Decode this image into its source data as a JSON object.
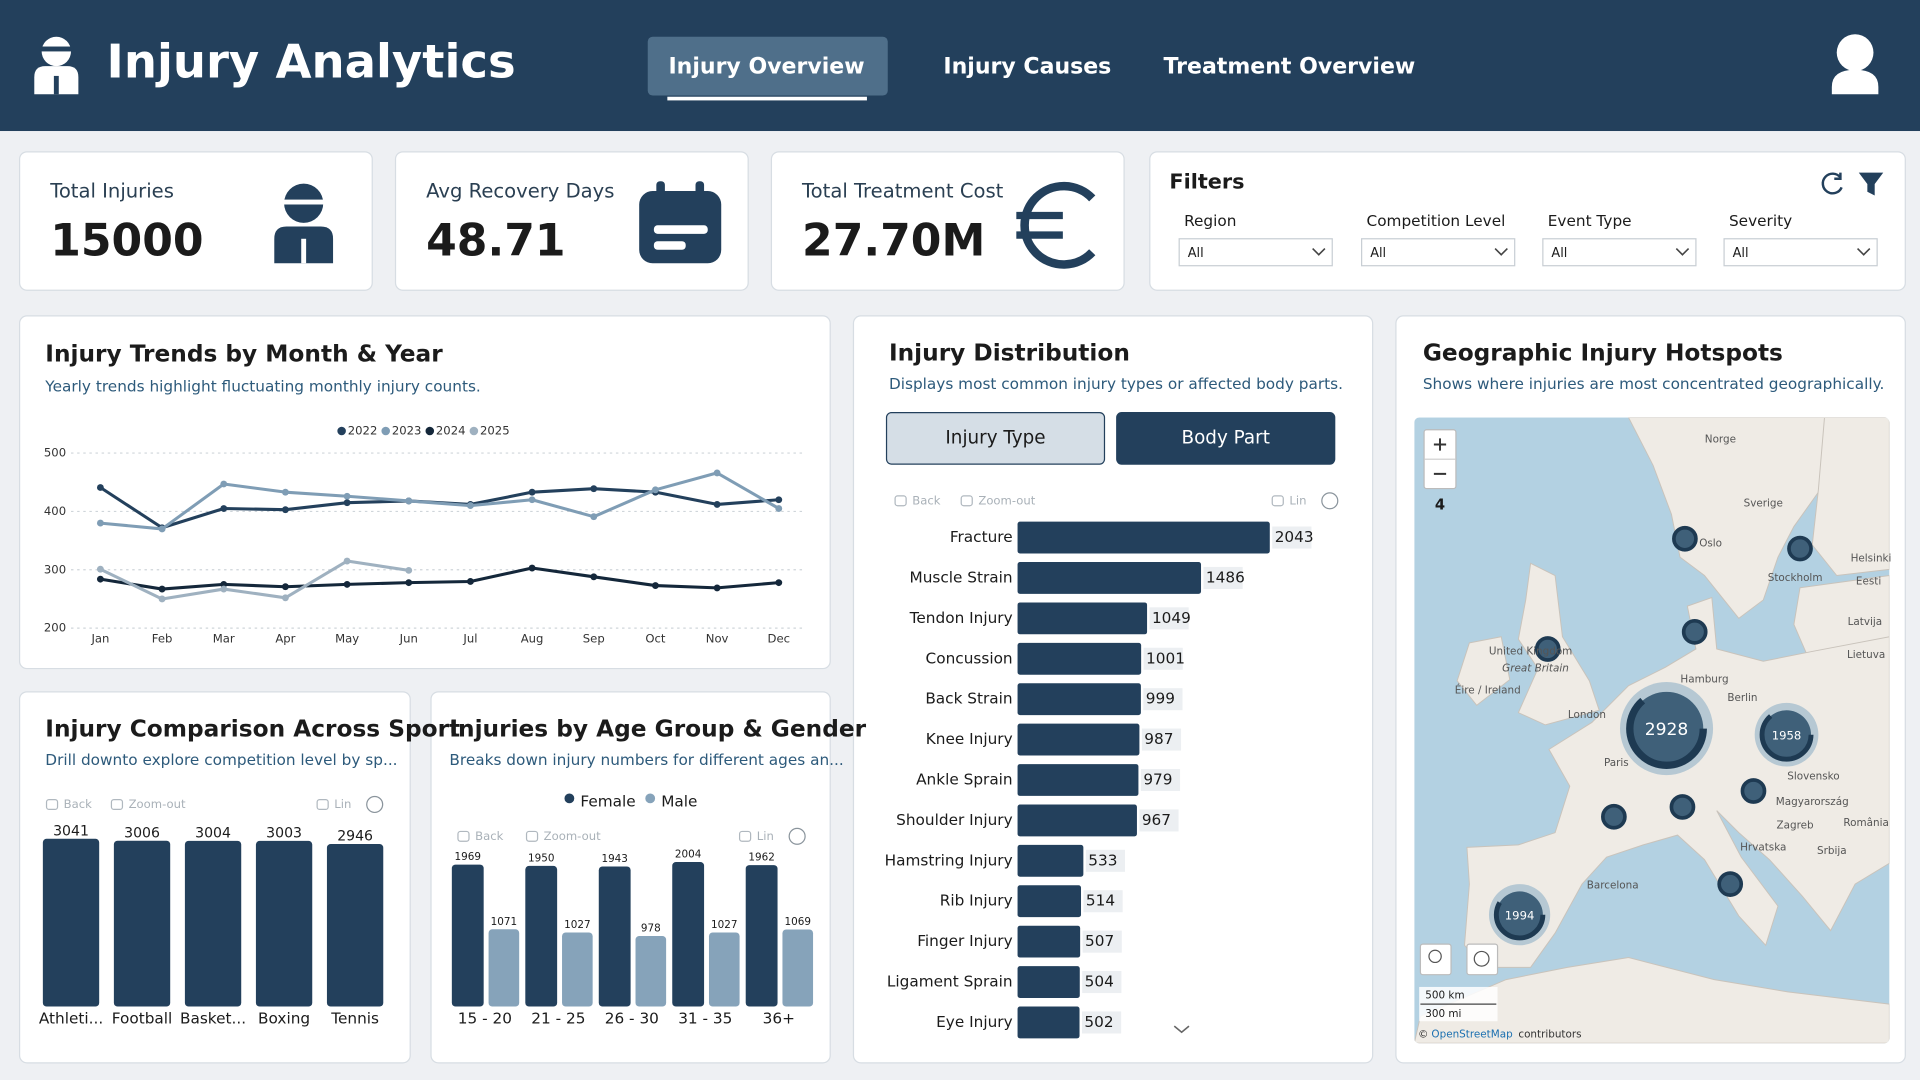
{
  "header": {
    "title": "Injury Analytics",
    "tabs": [
      "Injury Overview",
      "Injury Causes",
      "Treatment Overview"
    ]
  },
  "kpis": [
    {
      "label": "Total Injuries",
      "value": 15000
    },
    {
      "label": "Avg Recovery Days",
      "value": 48.71
    },
    {
      "label": "Total Treatment Cost",
      "value": "27.70M"
    }
  ],
  "filters": {
    "title": "Filters",
    "fields": [
      {
        "label": "Region",
        "value": "All"
      },
      {
        "label": "Competition Level",
        "value": "All"
      },
      {
        "label": "Event Type",
        "value": "All"
      },
      {
        "label": "Severity",
        "value": "All"
      }
    ]
  },
  "chart_data": [
    {
      "type": "line",
      "title": "Injury Trends by Month & Year",
      "subtitle": "Yearly trends highlight fluctuating monthly injury counts.",
      "categories": [
        "Jan",
        "Feb",
        "Mar",
        "Apr",
        "May",
        "Jun",
        "Jul",
        "Aug",
        "Sep",
        "Oct",
        "Nov",
        "Dec"
      ],
      "series": [
        {
          "name": "2022",
          "color": "#23405c",
          "values": [
            441,
            372,
            405,
            403,
            415,
            418,
            412,
            433,
            439,
            433,
            412,
            420
          ]
        },
        {
          "name": "2023",
          "color": "#7f9db5",
          "values": [
            380,
            370,
            447,
            433,
            426,
            418,
            410,
            420,
            391,
            437,
            466,
            405
          ]
        },
        {
          "name": "2024",
          "color": "#14273a",
          "values": [
            284,
            267,
            275,
            271,
            275,
            278,
            280,
            303,
            288,
            273,
            269,
            278
          ]
        },
        {
          "name": "2025",
          "color": "#9fb1c0",
          "values": [
            301,
            250,
            267,
            252,
            315,
            299,
            null,
            null,
            null,
            null,
            null,
            null
          ]
        }
      ],
      "ylim": [
        200,
        500
      ],
      "yticks": [
        200,
        300,
        400,
        500
      ],
      "grid": true,
      "legend": "top"
    },
    {
      "type": "bar",
      "title": "Injury Comparison Across Sport",
      "subtitle": "Drill downto explore competition level by sp...",
      "toolbar": [
        "Back",
        "Zoom-out",
        "Lin"
      ],
      "categories": [
        "Athleti...",
        "Football",
        "Basket...",
        "Boxing",
        "Tennis"
      ],
      "values": [
        3041,
        3006,
        3004,
        3003,
        2946
      ],
      "color": "#23405c"
    },
    {
      "type": "grouped_bar",
      "title": "Injuries by Age Group & Gender",
      "subtitle": "Breaks down injury numbers for different ages an...",
      "toolbar": [
        "Back",
        "Zoom-out",
        "Lin"
      ],
      "categories": [
        "15 - 20",
        "21 - 25",
        "26 - 30",
        "31 - 35",
        "36+"
      ],
      "series": [
        {
          "name": "Female",
          "color": "#23405c",
          "values": [
            1969,
            1950,
            1943,
            2004,
            1962
          ]
        },
        {
          "name": "Male",
          "color": "#86a3ba",
          "values": [
            1071,
            1027,
            978,
            1027,
            1069
          ]
        }
      ],
      "legend": "top"
    },
    {
      "type": "hbar",
      "title": "Injury Distribution",
      "subtitle": "Displays most common injury types or affected body parts.",
      "buttons": [
        "Injury Type",
        "Body Part"
      ],
      "toolbar": [
        "Back",
        "Zoom-out",
        "Lin"
      ],
      "categories": [
        "Fracture",
        "Muscle Strain",
        "Tendon Injury",
        "Concussion",
        "Back Strain",
        "Knee Injury",
        "Ankle Sprain",
        "Shoulder Injury",
        "Hamstring Injury",
        "Rib Injury",
        "Finger Injury",
        "Ligament Sprain",
        "Eye Injury"
      ],
      "values": [
        2043,
        1486,
        1049,
        1001,
        999,
        987,
        979,
        967,
        533,
        514,
        507,
        504,
        502
      ],
      "color": "#23405c"
    }
  ],
  "map": {
    "title": "Geographic Injury Hotspots",
    "subtitle": "Shows where injuries are most concentrated geographically.",
    "zoom": 4,
    "labels": [
      "Norge",
      "Sverige",
      "Oslo",
      "Stockholm",
      "Helsinki",
      "Eesti",
      "Latvija",
      "Lietuva",
      "United Kingdom",
      "Great Britain",
      "Éire / Ireland",
      "London",
      "Hamburg",
      "Berlin",
      "Paris",
      "Slovensko",
      "Magyarország",
      "Zagreb",
      "Hrvatska",
      "Srbija",
      "România",
      "Barcelona"
    ],
    "clusters": [
      2928,
      1958,
      1994
    ],
    "scale": [
      "500 km",
      "300 mi"
    ],
    "attribution": [
      "©",
      "OpenStreetMap",
      "contributors"
    ]
  }
}
